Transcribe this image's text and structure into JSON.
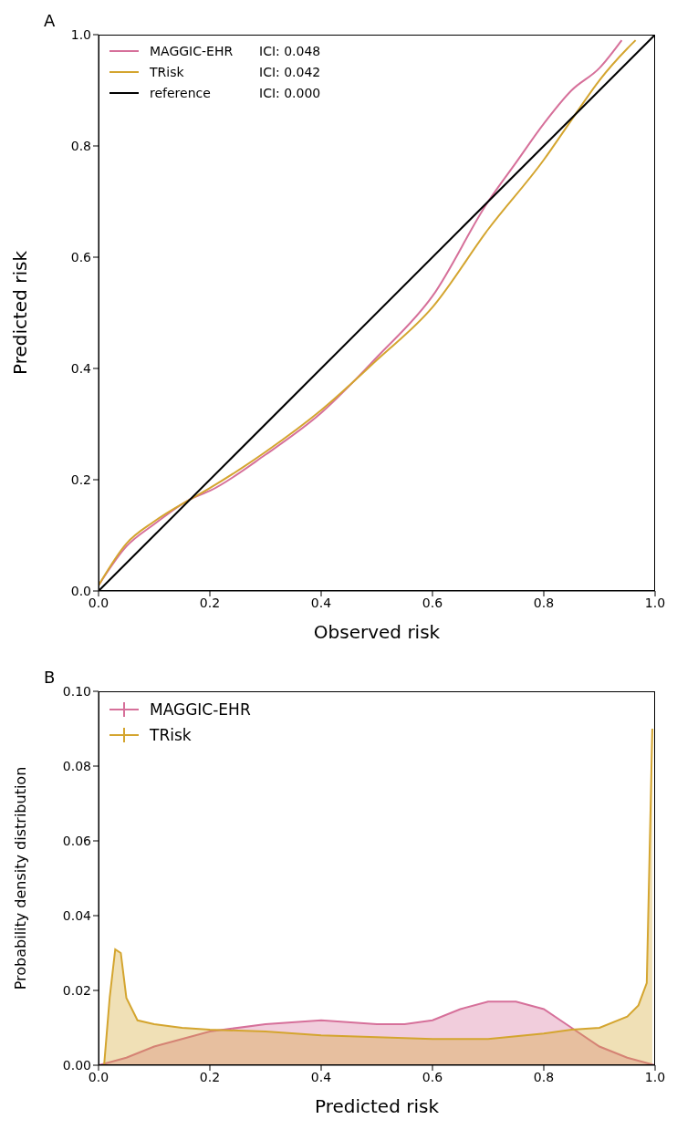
{
  "chart_data": [
    {
      "type": "line",
      "title": "A",
      "xlabel": "Observed risk",
      "ylabel": "Predicted risk",
      "legend": "top left",
      "marker": "none",
      "xlim": [
        0,
        1
      ],
      "ylim": [
        0,
        1
      ],
      "xticks": [
        {
          "value": 0,
          "label": "0.0"
        },
        {
          "value": 0.2,
          "label": "0.2"
        },
        {
          "value": 0.4,
          "label": "0.4"
        },
        {
          "value": 0.6,
          "label": "0.6"
        },
        {
          "value": 0.8,
          "label": "0.8"
        },
        {
          "value": 1,
          "label": "1.0"
        }
      ],
      "yticks": [
        {
          "value": 0,
          "label": "0.0"
        },
        {
          "value": 0.2,
          "label": "0.2"
        },
        {
          "value": 0.4,
          "label": "0.4"
        },
        {
          "value": 0.6,
          "label": "0.6"
        },
        {
          "value": 0.8,
          "label": "0.8"
        },
        {
          "value": 1,
          "label": "1.0"
        }
      ],
      "annotations": [
        "ICI: 0.048",
        "ICI: 0.042",
        "ICI: 0.000"
      ],
      "series": [
        {
          "name": "MAGGIC-EHR",
          "color": "#d6709a",
          "x": [
            0,
            0.05,
            0.1,
            0.165,
            0.2,
            0.3,
            0.4,
            0.5,
            0.6,
            0.7,
            0.75,
            0.8,
            0.85,
            0.9,
            0.94
          ],
          "values": [
            0.01,
            0.08,
            0.12,
            0.165,
            0.18,
            0.245,
            0.32,
            0.42,
            0.53,
            0.7,
            0.77,
            0.84,
            0.9,
            0.94,
            0.99
          ]
        },
        {
          "name": "TRisk",
          "color": "#d4a52f",
          "x": [
            0,
            0.05,
            0.1,
            0.165,
            0.2,
            0.3,
            0.4,
            0.5,
            0.6,
            0.7,
            0.8,
            0.85,
            0.9,
            0.95,
            0.965
          ],
          "values": [
            0.01,
            0.085,
            0.125,
            0.165,
            0.185,
            0.25,
            0.325,
            0.415,
            0.51,
            0.65,
            0.775,
            0.847,
            0.918,
            0.975,
            0.99
          ]
        },
        {
          "name": "reference",
          "color": "#000000",
          "x": [
            0,
            1
          ],
          "values": [
            0,
            1
          ]
        }
      ]
    },
    {
      "type": "area",
      "title": "B",
      "xlabel": "Predicted risk",
      "ylabel": "Probability density distribution",
      "legend": "top left",
      "marker": "none",
      "xlim": [
        0,
        1
      ],
      "ylim": [
        0,
        0.1
      ],
      "xticks": [
        {
          "value": 0,
          "label": "0.0"
        },
        {
          "value": 0.2,
          "label": "0.2"
        },
        {
          "value": 0.4,
          "label": "0.4"
        },
        {
          "value": 0.6,
          "label": "0.6"
        },
        {
          "value": 0.8,
          "label": "0.8"
        },
        {
          "value": 1,
          "label": "1.0"
        }
      ],
      "yticks": [
        {
          "value": 0,
          "label": "0.00"
        },
        {
          "value": 0.02,
          "label": "0.02"
        },
        {
          "value": 0.04,
          "label": "0.04"
        },
        {
          "value": 0.06,
          "label": "0.06"
        },
        {
          "value": 0.08,
          "label": "0.08"
        },
        {
          "value": 0.1,
          "label": "0.10"
        }
      ],
      "series": [
        {
          "name": "MAGGIC-EHR",
          "color": "#d6709a",
          "x": [
            0,
            0.05,
            0.1,
            0.15,
            0.2,
            0.3,
            0.4,
            0.5,
            0.55,
            0.6,
            0.65,
            0.7,
            0.75,
            0.8,
            0.85,
            0.9,
            0.95,
            1
          ],
          "values": [
            0,
            0.002,
            0.005,
            0.007,
            0.009,
            0.011,
            0.012,
            0.011,
            0.011,
            0.012,
            0.015,
            0.017,
            0.017,
            0.015,
            0.01,
            0.005,
            0.002,
            0
          ]
        },
        {
          "name": "TRisk",
          "color": "#d4a52f",
          "x": [
            0.01,
            0.02,
            0.03,
            0.04,
            0.05,
            0.07,
            0.1,
            0.15,
            0.2,
            0.3,
            0.4,
            0.5,
            0.6,
            0.7,
            0.8,
            0.85,
            0.9,
            0.95,
            0.97,
            0.985,
            0.995
          ],
          "values": [
            0,
            0.018,
            0.031,
            0.03,
            0.018,
            0.012,
            0.011,
            0.01,
            0.0095,
            0.009,
            0.008,
            0.0075,
            0.007,
            0.007,
            0.0085,
            0.0095,
            0.01,
            0.013,
            0.016,
            0.022,
            0.09
          ]
        }
      ]
    }
  ]
}
